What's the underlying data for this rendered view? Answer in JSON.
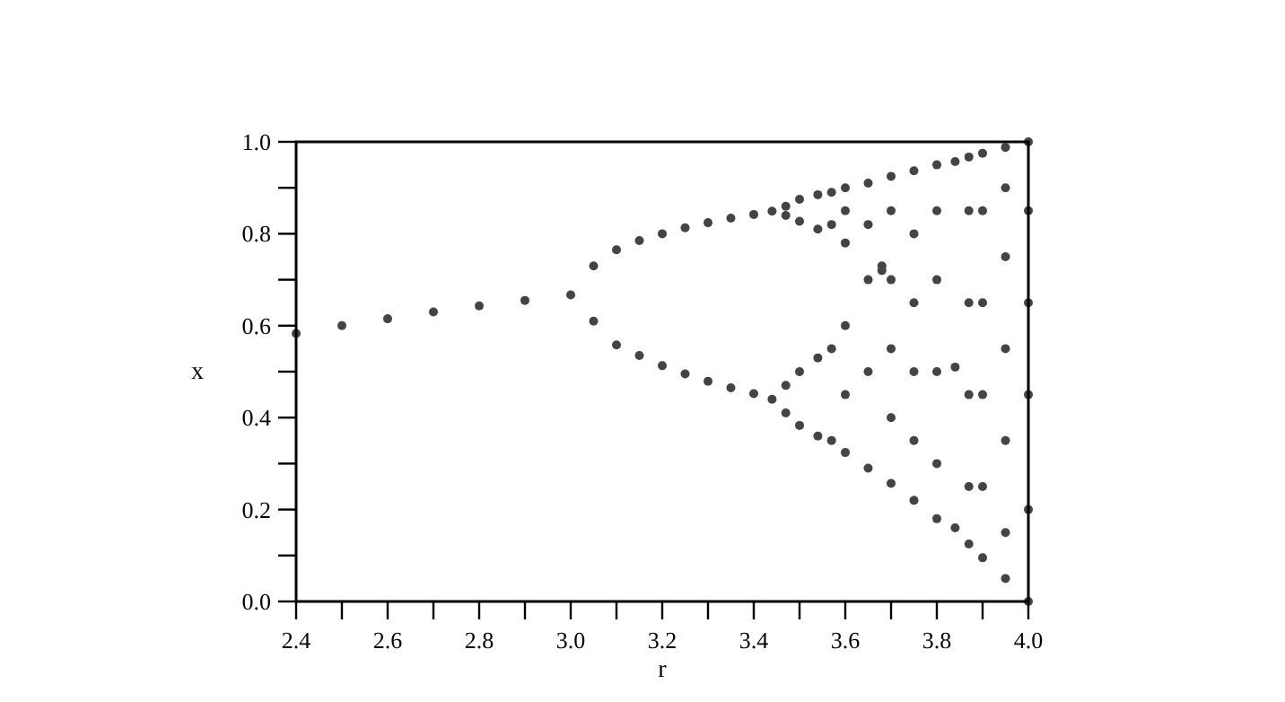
{
  "chart_data": {
    "type": "scatter",
    "xlabel": "r",
    "ylabel": "x",
    "marker": "circle",
    "grid": false,
    "xlim": [
      2.4,
      4.0
    ],
    "ylim": [
      0.0,
      1.0
    ],
    "xticks": [
      {
        "value": 2.4,
        "label": "2.4"
      },
      {
        "value": 2.5,
        "label": null
      },
      {
        "value": 2.6,
        "label": "2.6"
      },
      {
        "value": 2.7,
        "label": null
      },
      {
        "value": 2.8,
        "label": "2.8"
      },
      {
        "value": 2.9,
        "label": null
      },
      {
        "value": 3.0,
        "label": "3.0"
      },
      {
        "value": 3.1,
        "label": null
      },
      {
        "value": 3.2,
        "label": "3.2"
      },
      {
        "value": 3.3,
        "label": null
      },
      {
        "value": 3.4,
        "label": "3.4"
      },
      {
        "value": 3.5,
        "label": null
      },
      {
        "value": 3.6,
        "label": "3.6"
      },
      {
        "value": 3.7,
        "label": null
      },
      {
        "value": 3.8,
        "label": "3.8"
      },
      {
        "value": 3.9,
        "label": null
      },
      {
        "value": 4.0,
        "label": "4.0"
      }
    ],
    "yticks": [
      {
        "value": 0.0,
        "label": "0.0"
      },
      {
        "value": 0.1,
        "label": null
      },
      {
        "value": 0.2,
        "label": "0.2"
      },
      {
        "value": 0.3,
        "label": null
      },
      {
        "value": 0.4,
        "label": "0.4"
      },
      {
        "value": 0.5,
        "label": null
      },
      {
        "value": 0.6,
        "label": "0.6"
      },
      {
        "value": 0.7,
        "label": null
      },
      {
        "value": 0.8,
        "label": "0.8"
      },
      {
        "value": 0.9,
        "label": null
      },
      {
        "value": 1.0,
        "label": "1.0"
      }
    ],
    "series": [
      {
        "color": "#444444",
        "x": [
          2.4,
          2.5,
          2.6,
          2.7,
          2.8,
          2.9,
          3.0,
          3.05,
          3.1,
          3.15,
          3.2,
          3.25,
          3.3,
          3.35,
          3.4,
          3.44,
          3.05,
          3.1,
          3.15,
          3.2,
          3.25,
          3.3,
          3.35,
          3.4,
          3.44,
          3.47,
          3.5,
          3.54,
          3.47,
          3.5,
          3.54,
          3.47,
          3.5,
          3.54,
          3.47,
          3.5,
          3.54,
          3.57,
          3.57,
          3.57,
          3.57,
          3.6,
          3.6,
          3.6,
          3.6,
          3.6,
          3.6,
          3.65,
          3.65,
          3.65,
          3.65,
          3.65,
          3.68,
          3.68,
          3.7,
          3.7,
          3.7,
          3.7,
          3.7,
          3.7,
          3.75,
          3.75,
          3.75,
          3.75,
          3.75,
          3.75,
          3.8,
          3.8,
          3.8,
          3.8,
          3.8,
          3.8,
          3.84,
          3.84,
          3.84,
          3.87,
          3.87,
          3.87,
          3.87,
          3.87,
          3.87,
          3.9,
          3.9,
          3.9,
          3.9,
          3.9,
          3.9,
          3.95,
          3.95,
          3.95,
          3.95,
          3.95,
          3.95,
          3.95,
          4.0,
          4.0,
          4.0,
          4.0,
          4.0,
          4.0
        ],
        "values": [
          0.583,
          0.6,
          0.615,
          0.63,
          0.643,
          0.655,
          0.667,
          0.73,
          0.765,
          0.785,
          0.8,
          0.813,
          0.824,
          0.834,
          0.842,
          0.849,
          0.61,
          0.558,
          0.535,
          0.513,
          0.495,
          0.479,
          0.465,
          0.452,
          0.44,
          0.86,
          0.875,
          0.885,
          0.84,
          0.827,
          0.81,
          0.47,
          0.5,
          0.53,
          0.41,
          0.383,
          0.36,
          0.89,
          0.82,
          0.55,
          0.35,
          0.9,
          0.85,
          0.78,
          0.6,
          0.45,
          0.324,
          0.91,
          0.82,
          0.7,
          0.5,
          0.29,
          0.73,
          0.72,
          0.925,
          0.85,
          0.7,
          0.55,
          0.4,
          0.257,
          0.937,
          0.8,
          0.65,
          0.5,
          0.35,
          0.22,
          0.95,
          0.85,
          0.7,
          0.5,
          0.3,
          0.18,
          0.957,
          0.51,
          0.16,
          0.967,
          0.85,
          0.65,
          0.45,
          0.25,
          0.125,
          0.975,
          0.85,
          0.65,
          0.45,
          0.25,
          0.095,
          0.988,
          0.9,
          0.75,
          0.55,
          0.35,
          0.15,
          0.05,
          1.0,
          0.85,
          0.65,
          0.45,
          0.2,
          0.0
        ]
      }
    ]
  }
}
